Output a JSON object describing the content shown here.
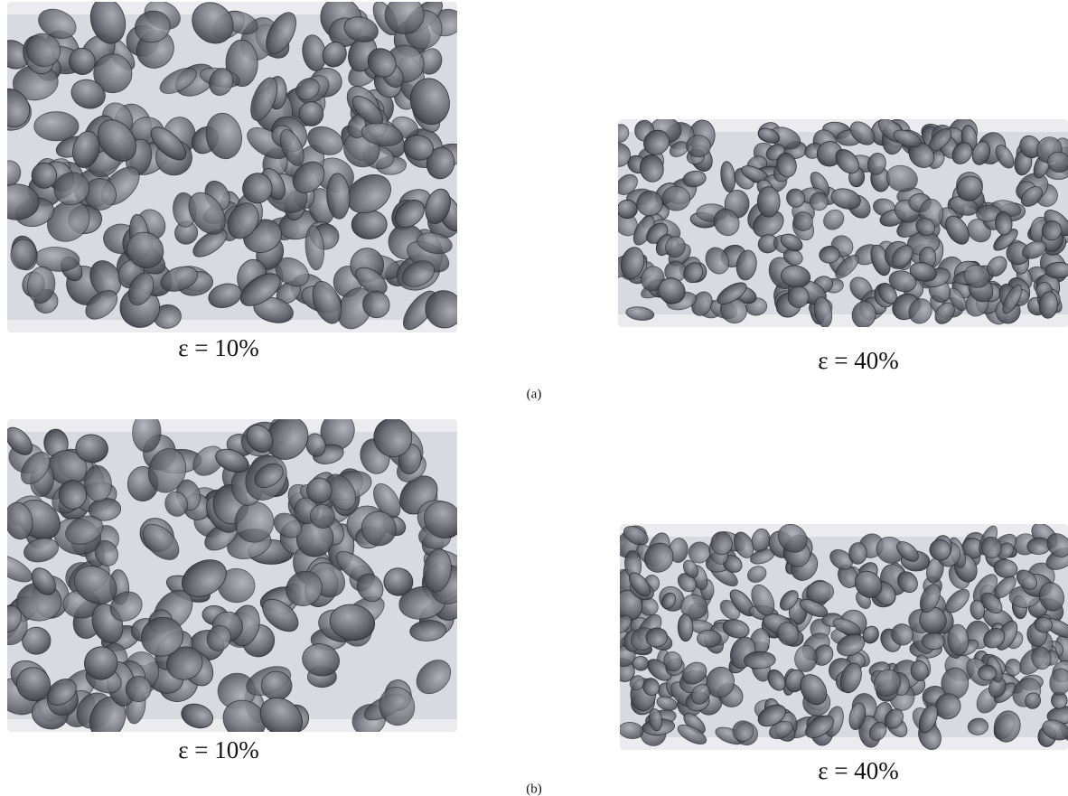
{
  "panels": [
    {
      "label": "(a)",
      "images": [
        {
          "caption": "ε = 10%"
        },
        {
          "caption": "ε = 40%"
        }
      ]
    },
    {
      "label": "(b)",
      "images": [
        {
          "caption": "ε = 10%"
        },
        {
          "caption": "ε = 40%"
        }
      ]
    }
  ]
}
